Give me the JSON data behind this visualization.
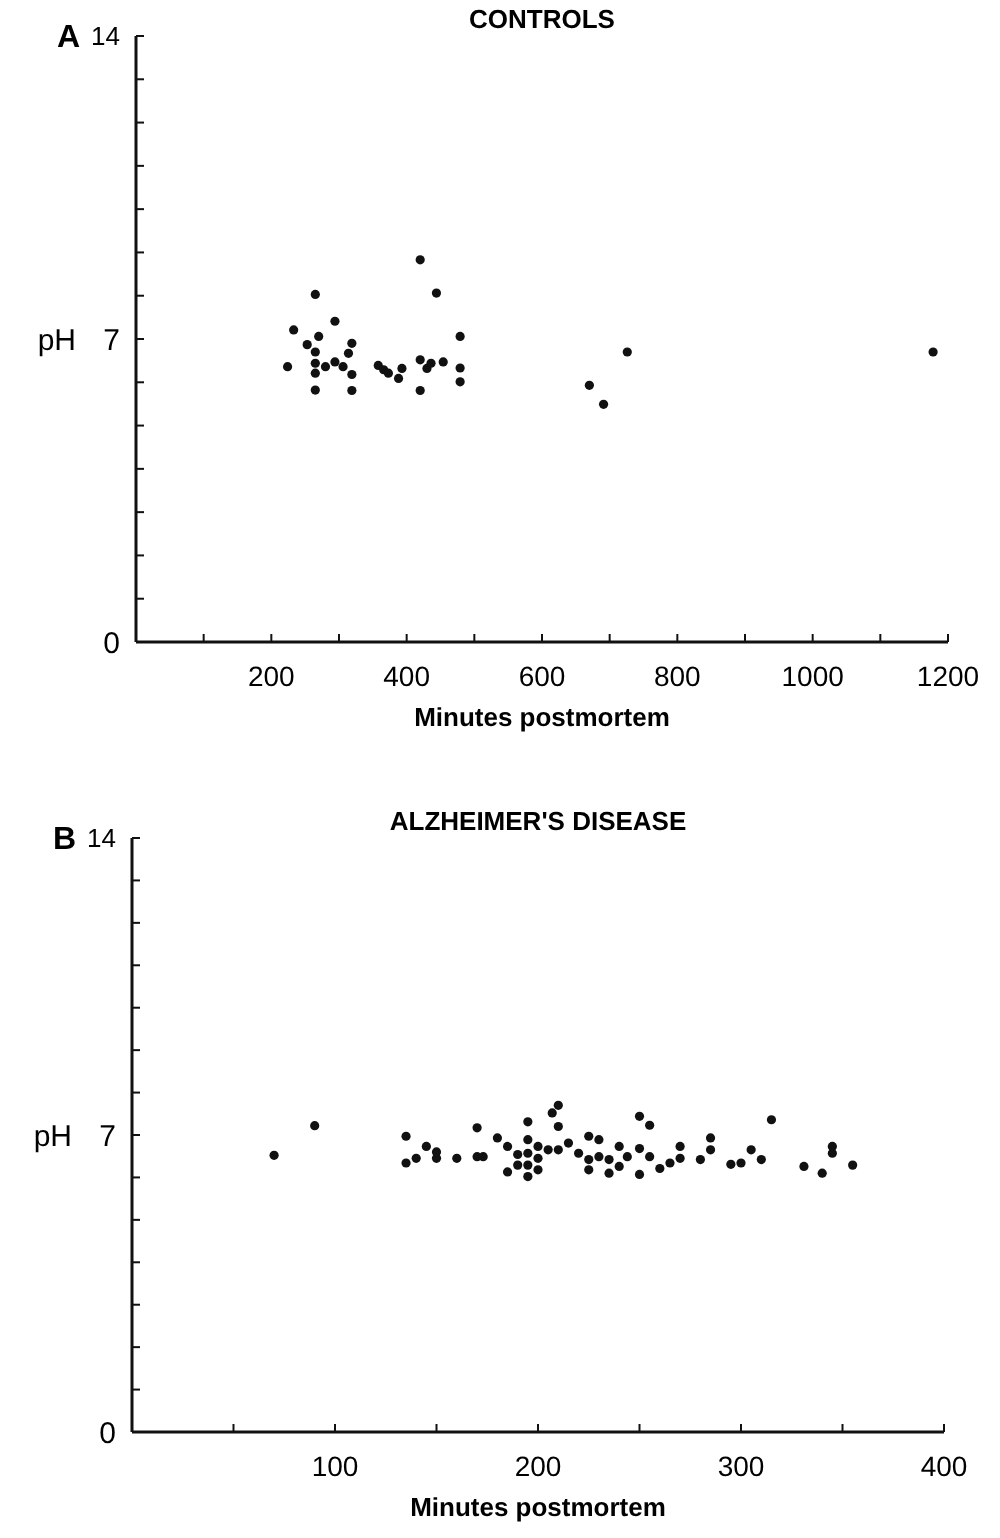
{
  "chart_data": [
    {
      "type": "scatter",
      "title": "CONTROLS",
      "xlabel": "Minutes postmortem",
      "ylabel": "pH",
      "annotations": [
        "A"
      ],
      "marker": "circle",
      "grid": false,
      "xlim": [
        0,
        1200
      ],
      "ylim": [
        0,
        14
      ],
      "xticks": [
        {
          "value": 100,
          "label": null
        },
        200,
        {
          "value": 300,
          "label": null
        },
        400,
        {
          "value": 500,
          "label": null
        },
        600,
        {
          "value": 700,
          "label": null
        },
        800,
        {
          "value": 900,
          "label": null
        },
        1000,
        {
          "value": 1100,
          "label": null
        },
        1200
      ],
      "yticks": [
        0,
        {
          "value": 1,
          "label": null
        },
        {
          "value": 2,
          "label": null
        },
        {
          "value": 3,
          "label": null
        },
        {
          "value": 4,
          "label": null
        },
        {
          "value": 5,
          "label": null
        },
        {
          "value": 6,
          "label": null
        },
        7,
        {
          "value": 8,
          "label": null
        },
        {
          "value": 9,
          "label": null
        },
        {
          "value": 10,
          "label": null
        },
        {
          "value": 11,
          "label": null
        },
        {
          "value": 12,
          "label": null
        },
        {
          "value": 13,
          "label": null
        },
        14
      ],
      "x": [
        224,
        233,
        253,
        265,
        265,
        265,
        265,
        265,
        270,
        280,
        294,
        294,
        306,
        314,
        319,
        319,
        319,
        358,
        366,
        373,
        388,
        393,
        420,
        420,
        420,
        430,
        436,
        444,
        454,
        479,
        479,
        479,
        670,
        691,
        726,
        1178
      ],
      "series": [
        {
          "color": "#111111",
          "values": [
            6.36,
            7.21,
            6.87,
            8.03,
            6.7,
            6.44,
            6.21,
            5.82,
            7.06,
            6.36,
            7.41,
            6.47,
            6.36,
            6.67,
            6.9,
            6.18,
            5.81,
            6.39,
            6.29,
            6.21,
            6.09,
            6.32,
            8.83,
            6.52,
            5.81,
            6.32,
            6.44,
            8.06,
            6.47,
            7.06,
            6.33,
            6.01,
            5.93,
            5.49,
            6.7,
            6.7
          ]
        }
      ]
    },
    {
      "type": "scatter",
      "title": "ALZHEIMER'S DISEASE",
      "xlabel": "Minutes postmortem",
      "ylabel": "pH",
      "annotations": [
        "B"
      ],
      "marker": "circle",
      "grid": false,
      "xlim": [
        0,
        400
      ],
      "ylim": [
        0,
        14
      ],
      "xticks": [
        {
          "value": 50,
          "label": null
        },
        100,
        {
          "value": 150,
          "label": null
        },
        200,
        {
          "value": 250,
          "label": null
        },
        300,
        {
          "value": 350,
          "label": null
        },
        400
      ],
      "yticks": [
        0,
        {
          "value": 1,
          "label": null
        },
        {
          "value": 2,
          "label": null
        },
        {
          "value": 3,
          "label": null
        },
        {
          "value": 4,
          "label": null
        },
        {
          "value": 5,
          "label": null
        },
        {
          "value": 6,
          "label": null
        },
        7,
        {
          "value": 8,
          "label": null
        },
        {
          "value": 9,
          "label": null
        },
        {
          "value": 10,
          "label": null
        },
        {
          "value": 11,
          "label": null
        },
        {
          "value": 12,
          "label": null
        },
        {
          "value": 13,
          "label": null
        },
        14
      ],
      "x": [
        70,
        90,
        135,
        135,
        140,
        145,
        150,
        150,
        160,
        170,
        170,
        173,
        180,
        185,
        185,
        190,
        190,
        195,
        195,
        195,
        195,
        195,
        200,
        200,
        200,
        205,
        207,
        210,
        210,
        210,
        215,
        220,
        225,
        225,
        225,
        230,
        230,
        235,
        235,
        240,
        240,
        244,
        250,
        250,
        250,
        255,
        255,
        260,
        265,
        270,
        270,
        280,
        285,
        285,
        295,
        300,
        305,
        310,
        315,
        331,
        340,
        345,
        345,
        355
      ],
      "series": [
        {
          "color": "#111111",
          "values": [
            6.52,
            7.22,
            6.97,
            6.34,
            6.45,
            6.73,
            6.6,
            6.45,
            6.45,
            7.17,
            6.49,
            6.49,
            6.93,
            6.73,
            6.13,
            6.29,
            6.54,
            7.31,
            6.89,
            6.57,
            6.29,
            6.02,
            6.73,
            6.45,
            6.18,
            6.65,
            7.52,
            7.7,
            7.2,
            6.65,
            6.81,
            6.57,
            6.97,
            6.42,
            6.18,
            6.89,
            6.49,
            6.42,
            6.1,
            6.73,
            6.26,
            6.49,
            7.44,
            6.68,
            6.07,
            7.23,
            6.49,
            6.21,
            6.34,
            6.73,
            6.45,
            6.42,
            6.93,
            6.65,
            6.31,
            6.34,
            6.65,
            6.42,
            7.36,
            6.26,
            6.1,
            6.73,
            6.57,
            6.29
          ]
        }
      ]
    }
  ]
}
